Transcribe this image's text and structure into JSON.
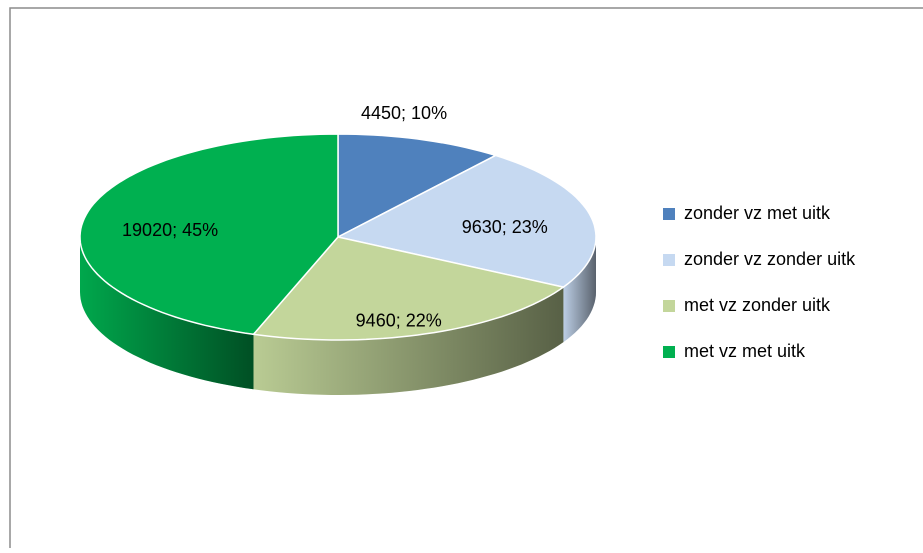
{
  "chart_data": {
    "type": "pie",
    "categories": [
      "zonder vz met uitk",
      "zonder vz zonder uitk",
      "met vz zonder uitk",
      "met vz met uitk"
    ],
    "values": [
      4450,
      9630,
      9460,
      19020
    ],
    "value_labels": [
      "4450; 10%",
      "9630; 23%",
      "9460; 22%",
      "19020; 45%"
    ],
    "colors": [
      "#4f81bd",
      "#c6d9f1",
      "#c3d69b",
      "#00b050"
    ],
    "legend": "right"
  }
}
